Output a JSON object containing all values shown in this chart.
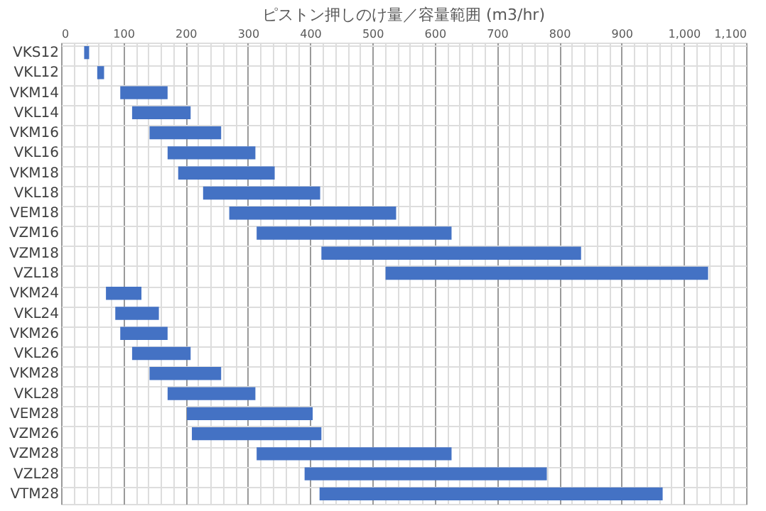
{
  "chart_data": {
    "type": "bar",
    "orientation": "horizontal",
    "title": "ピストン押しのけ量／容量範囲 (m3/hr)",
    "categories": [
      "VKS12",
      "VKL12",
      "VKM14",
      "VKL14",
      "VKM16",
      "VKL16",
      "VKM18",
      "VKL18",
      "VEM18",
      "VZM16",
      "VZM18",
      "VZL18",
      "VKM24",
      "VKL24",
      "VKM26",
      "VKL26",
      "VKM28",
      "VKL28",
      "VEM28",
      "VZM26",
      "VZM28",
      "VZL28",
      "VTM28"
    ],
    "base": [
      37,
      58,
      95,
      114,
      142,
      171,
      188,
      228,
      270,
      314,
      418,
      521,
      72,
      87,
      95,
      114,
      142,
      171,
      202,
      210,
      314,
      391,
      415
    ],
    "values": [
      8,
      11,
      76,
      94,
      115,
      141,
      155,
      188,
      268,
      313,
      417,
      518,
      57,
      70,
      76,
      94,
      115,
      141,
      202,
      208,
      313,
      389,
      551
    ],
    "color": "#4472c4",
    "xlim": [
      0,
      1100
    ],
    "xticks": [
      0,
      {
        "value": 20,
        "label": null
      },
      {
        "value": 40,
        "label": null
      },
      {
        "value": 60,
        "label": null
      },
      {
        "value": 80,
        "label": null
      },
      100,
      {
        "value": 120,
        "label": null
      },
      {
        "value": 140,
        "label": null
      },
      {
        "value": 160,
        "label": null
      },
      {
        "value": 180,
        "label": null
      },
      200,
      {
        "value": 220,
        "label": null
      },
      {
        "value": 240,
        "label": null
      },
      {
        "value": 260,
        "label": null
      },
      {
        "value": 280,
        "label": null
      },
      300,
      {
        "value": 320,
        "label": null
      },
      {
        "value": 340,
        "label": null
      },
      {
        "value": 360,
        "label": null
      },
      {
        "value": 380,
        "label": null
      },
      400,
      {
        "value": 420,
        "label": null
      },
      {
        "value": 440,
        "label": null
      },
      {
        "value": 460,
        "label": null
      },
      {
        "value": 480,
        "label": null
      },
      500,
      {
        "value": 520,
        "label": null
      },
      {
        "value": 540,
        "label": null
      },
      {
        "value": 560,
        "label": null
      },
      {
        "value": 580,
        "label": null
      },
      600,
      {
        "value": 620,
        "label": null
      },
      {
        "value": 640,
        "label": null
      },
      {
        "value": 660,
        "label": null
      },
      {
        "value": 680,
        "label": null
      },
      700,
      {
        "value": 720,
        "label": null
      },
      {
        "value": 740,
        "label": null
      },
      {
        "value": 760,
        "label": null
      },
      {
        "value": 780,
        "label": null
      },
      800,
      {
        "value": 820,
        "label": null
      },
      {
        "value": 840,
        "label": null
      },
      {
        "value": 860,
        "label": null
      },
      {
        "value": 880,
        "label": null
      },
      900,
      {
        "value": 920,
        "label": null
      },
      {
        "value": 940,
        "label": null
      },
      {
        "value": 960,
        "label": null
      },
      {
        "value": 980,
        "label": null
      },
      {
        "value": 1000,
        "label": "1,000"
      },
      {
        "value": 1020,
        "label": null
      },
      {
        "value": 1040,
        "label": null
      },
      {
        "value": 1060,
        "label": null
      },
      {
        "value": 1080,
        "label": null
      },
      {
        "value": 1100,
        "label": "1,100"
      }
    ],
    "grid": true
  }
}
